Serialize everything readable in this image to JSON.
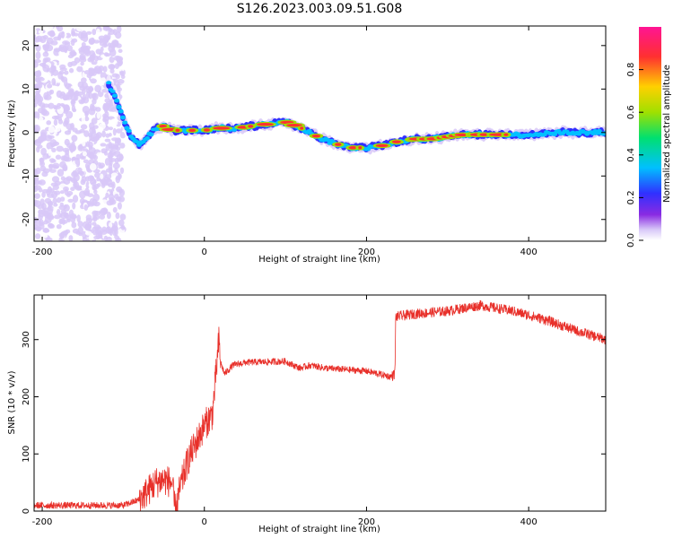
{
  "figure_title": "S126.2023.003.09.51.G08",
  "colors": {
    "snr_line": "#e8302a",
    "axis": "#000000",
    "spectrum_stops": [
      "#ffffff",
      "#d8c8f8",
      "#8a2be2",
      "#3030ff",
      "#00c0ff",
      "#00e070",
      "#a0e000",
      "#ffd000",
      "#ff3030",
      "#ff1493"
    ]
  },
  "chart_data": [
    {
      "type": "heatmap",
      "name": "spectrogram",
      "xlabel": "Height of straight line (km)",
      "ylabel": "Frequency (Hz)",
      "xlim": [
        -210,
        495
      ],
      "ylim": [
        -25,
        24.5
      ],
      "xticks": [
        -200,
        0,
        200,
        400
      ],
      "yticks": [
        -20,
        -10,
        0,
        10,
        20
      ],
      "ridge": {
        "x": [
          -120,
          -110,
          -100,
          -90,
          -80,
          -70,
          -60,
          -50,
          -40,
          -20,
          0,
          20,
          40,
          60,
          80,
          100,
          120,
          140,
          160,
          180,
          200,
          220,
          240,
          260,
          280,
          300,
          320,
          360,
          400,
          440,
          495
        ],
        "y": [
          12,
          8,
          3,
          -1,
          -3,
          -1,
          1,
          1.5,
          0.5,
          0.5,
          0.5,
          1,
          1,
          1.5,
          2,
          2.5,
          1,
          -1,
          -2.5,
          -3.5,
          -3.5,
          -3,
          -2,
          -1.5,
          -1.5,
          -1,
          -0.5,
          -0.5,
          -0.5,
          0,
          0
        ]
      },
      "colorbar": {
        "label": "Normalized spectral amplitude",
        "range": [
          0,
          1
        ],
        "ticks": [
          "0.0",
          "0.2",
          "0.4",
          "0.6",
          "0.8"
        ]
      }
    },
    {
      "type": "line",
      "name": "snr",
      "xlabel": "Height of straight line (km)",
      "ylabel": "SNR (10 * v/v)",
      "xlim": [
        -210,
        495
      ],
      "ylim": [
        0,
        378
      ],
      "xticks": [
        -200,
        0,
        200,
        400
      ],
      "yticks": [
        0,
        100,
        200,
        300
      ],
      "series": [
        {
          "x": [
            -210,
            -100,
            -80,
            -60,
            -50,
            -40,
            -36,
            -30,
            -20,
            -10,
            0,
            10,
            15,
            18,
            20,
            25,
            35,
            50,
            100,
            110,
            118,
            130,
            150,
            200,
            230,
            235,
            236,
            260,
            300,
            340,
            360,
            380,
            420,
            460,
            495
          ],
          "y": [
            10,
            10,
            20,
            50,
            55,
            50,
            0,
            40,
            90,
            120,
            150,
            170,
            250,
            300,
            260,
            240,
            255,
            260,
            262,
            255,
            250,
            255,
            250,
            245,
            235,
            240,
            340,
            345,
            350,
            360,
            355,
            350,
            335,
            315,
            300
          ]
        }
      ]
    }
  ]
}
